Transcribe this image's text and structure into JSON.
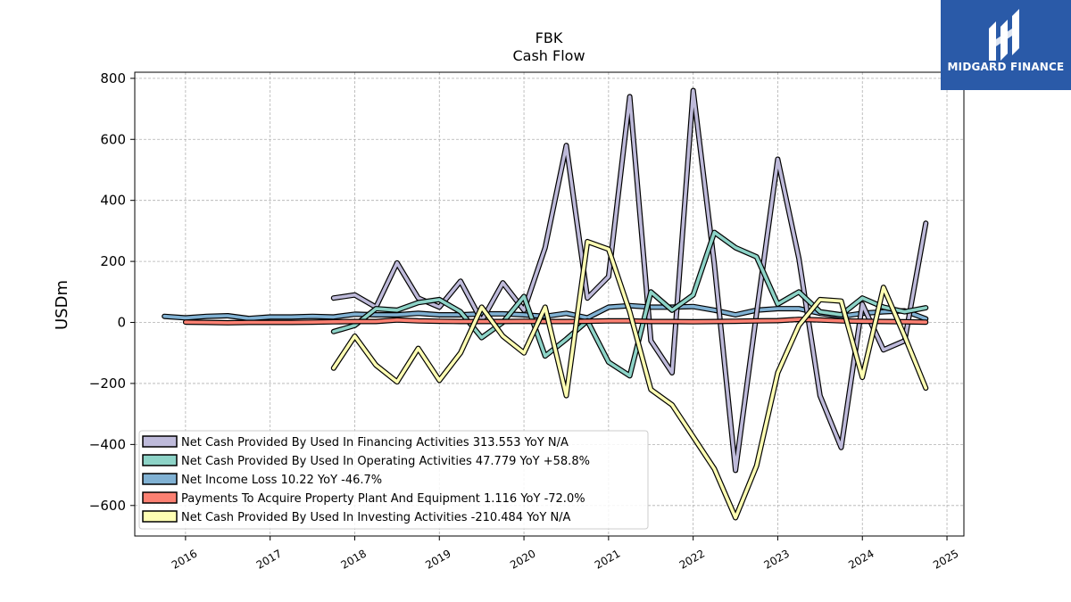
{
  "logo": {
    "name": "MIDGARD FINANCE"
  },
  "chart_data": {
    "type": "line",
    "title": "FBK",
    "subtitle": "Cash Flow",
    "ylabel": "USDm",
    "xlabel": "",
    "ylim": [
      -700,
      820
    ],
    "xlim": [
      2015.4,
      2025.2
    ],
    "y_ticks": [
      -600,
      -400,
      -200,
      0,
      200,
      400,
      600,
      800
    ],
    "y_tick_labels": [
      "−600",
      "−400",
      "−200",
      "0",
      "200",
      "400",
      "600",
      "800"
    ],
    "x_ticks": [
      2016,
      2017,
      2018,
      2019,
      2020,
      2021,
      2022,
      2023,
      2024,
      2025
    ],
    "x_tick_labels": [
      "2016",
      "2017",
      "2018",
      "2019",
      "2020",
      "2021",
      "2022",
      "2023",
      "2024",
      "2025"
    ],
    "grid": true,
    "legend_position": "lower-left",
    "series": [
      {
        "name": "Net Income Loss",
        "legend": "Net Income Loss  10.22 YoY -46.7%",
        "color": "#80b1d3",
        "x": [
          2015.75,
          2016.0,
          2016.25,
          2016.5,
          2016.75,
          2017.0,
          2017.25,
          2017.5,
          2017.75,
          2018.0,
          2018.25,
          2018.5,
          2018.75,
          2019.0,
          2019.25,
          2019.5,
          2019.75,
          2020.0,
          2020.25,
          2020.5,
          2020.75,
          2021.0,
          2021.25,
          2021.5,
          2021.75,
          2022.0,
          2022.25,
          2022.5,
          2022.75,
          2023.0,
          2023.25,
          2023.5,
          2023.75,
          2024.0,
          2024.25,
          2024.5,
          2024.75
        ],
        "y": [
          20,
          15,
          20,
          22,
          13,
          18,
          18,
          20,
          18,
          27,
          25,
          25,
          30,
          25,
          25,
          28,
          28,
          25,
          20,
          30,
          15,
          50,
          55,
          50,
          50,
          52,
          40,
          25,
          40,
          45,
          45,
          30,
          20,
          30,
          35,
          38,
          12
        ]
      },
      {
        "name": "Net Cash Provided By Used In Financing Activities",
        "legend": "Net Cash Provided By Used In Financing Activities  313.553 YoY N/A",
        "color": "#bebada",
        "x": [
          2017.75,
          2018.0,
          2018.25,
          2018.5,
          2018.75,
          2019.0,
          2019.25,
          2019.5,
          2019.75,
          2020.0,
          2020.25,
          2020.5,
          2020.75,
          2021.0,
          2021.25,
          2021.5,
          2021.75,
          2022.0,
          2022.25,
          2022.5,
          2022.75,
          2023.0,
          2023.25,
          2023.5,
          2023.75,
          2024.0,
          2024.25,
          2024.5,
          2024.75
        ],
        "y": [
          80,
          90,
          50,
          195,
          80,
          50,
          135,
          5,
          130,
          40,
          245,
          580,
          80,
          150,
          740,
          -60,
          -165,
          760,
          190,
          -485,
          30,
          535,
          210,
          -240,
          -410,
          60,
          -90,
          -60,
          325
        ]
      },
      {
        "name": "Net Cash Provided By Used In Operating Activities",
        "legend": "Net Cash Provided By Used In Operating Activities  47.779 YoY +58.8%",
        "color": "#8dd3c7",
        "x": [
          2017.75,
          2018.0,
          2018.25,
          2018.5,
          2018.75,
          2019.0,
          2019.25,
          2019.5,
          2019.75,
          2020.0,
          2020.25,
          2020.5,
          2020.75,
          2021.0,
          2021.25,
          2021.5,
          2021.75,
          2022.0,
          2022.25,
          2022.5,
          2022.75,
          2023.0,
          2023.25,
          2023.5,
          2023.75,
          2024.0,
          2024.25,
          2024.5,
          2024.75
        ],
        "y": [
          -30,
          -10,
          45,
          40,
          65,
          75,
          35,
          -50,
          0,
          85,
          -110,
          -55,
          5,
          -130,
          -175,
          100,
          40,
          90,
          295,
          245,
          215,
          60,
          100,
          35,
          25,
          80,
          50,
          35,
          48
        ]
      },
      {
        "name": "Payments To Acquire Property Plant And Equipment",
        "legend": "Payments To Acquire Property Plant And Equipment  1.116 YoY -72.0%",
        "color": "#fb8072",
        "x": [
          2016.0,
          2016.25,
          2016.5,
          2016.75,
          2017.0,
          2017.25,
          2017.5,
          2017.75,
          2018.0,
          2018.25,
          2018.5,
          2018.75,
          2019.0,
          2019.25,
          2019.5,
          2019.75,
          2020.0,
          2020.25,
          2020.5,
          2020.75,
          2021.0,
          2021.25,
          2021.5,
          2021.75,
          2022.0,
          2022.25,
          2022.5,
          2022.75,
          2023.0,
          2023.25,
          2023.5,
          2023.75,
          2024.0,
          2024.25,
          2024.5,
          2024.75
        ],
        "y": [
          1,
          0,
          -1,
          0,
          0,
          0,
          1,
          2,
          3,
          3,
          8,
          5,
          4,
          3,
          3,
          3,
          4,
          3,
          3,
          4,
          5,
          5,
          3,
          3,
          2,
          3,
          4,
          5,
          6,
          10,
          8,
          5,
          4,
          3,
          2,
          1
        ]
      },
      {
        "name": "Net Cash Provided By Used In Investing Activities",
        "legend": "Net Cash Provided By Used In Investing Activities  -210.484 YoY N/A",
        "color": "#ffffb3",
        "x": [
          2017.75,
          2018.0,
          2018.25,
          2018.5,
          2018.75,
          2019.0,
          2019.25,
          2019.5,
          2019.75,
          2020.0,
          2020.25,
          2020.5,
          2020.75,
          2021.0,
          2021.25,
          2021.5,
          2021.75,
          2022.0,
          2022.25,
          2022.5,
          2022.75,
          2023.0,
          2023.25,
          2023.5,
          2023.75,
          2024.0,
          2024.25,
          2024.5,
          2024.75
        ],
        "y": [
          -150,
          -45,
          -140,
          -195,
          -85,
          -190,
          -100,
          50,
          -45,
          -100,
          50,
          -240,
          265,
          240,
          35,
          -220,
          -270,
          -375,
          -480,
          -640,
          -470,
          -165,
          -10,
          75,
          70,
          -180,
          115,
          -45,
          -215
        ]
      }
    ],
    "legend_order": [
      "Net Cash Provided By Used In Financing Activities",
      "Net Cash Provided By Used In Operating Activities",
      "Net Income Loss",
      "Payments To Acquire Property Plant And Equipment",
      "Net Cash Provided By Used In Investing Activities"
    ]
  }
}
